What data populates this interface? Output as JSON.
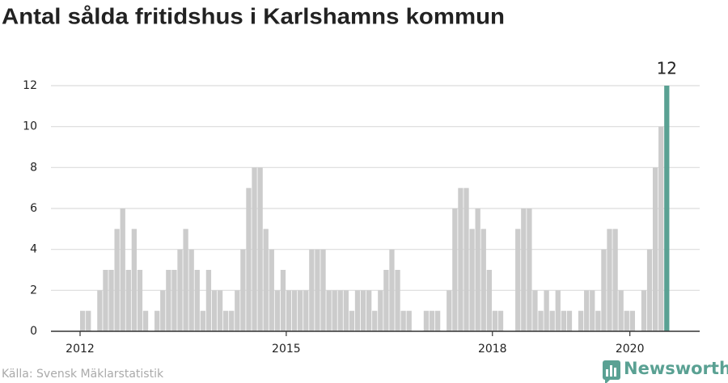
{
  "chart_data": {
    "type": "bar",
    "title": "Antal sålda fritidshus i Karlshamns kommun",
    "source": "Källa: Svensk Mäklarstatistik",
    "brand": "Newsworthy",
    "categories": [
      "2012",
      null,
      null,
      null,
      null,
      null,
      null,
      null,
      null,
      null,
      null,
      null,
      null,
      null,
      null,
      null,
      null,
      null,
      null,
      null,
      null,
      null,
      null,
      null,
      null,
      null,
      null,
      null,
      null,
      null,
      null,
      null,
      null,
      null,
      null,
      null,
      "2015",
      null,
      null,
      null,
      null,
      null,
      null,
      null,
      null,
      null,
      null,
      null,
      null,
      null,
      null,
      null,
      null,
      null,
      null,
      null,
      null,
      null,
      null,
      null,
      null,
      null,
      null,
      null,
      null,
      null,
      null,
      null,
      null,
      null,
      null,
      null,
      "2018",
      null,
      null,
      null,
      null,
      null,
      null,
      null,
      null,
      null,
      null,
      null,
      null,
      null,
      null,
      null,
      null,
      null,
      null,
      null,
      null,
      null,
      null,
      null,
      "2020",
      null,
      null,
      null,
      null,
      null,
      null
    ],
    "values": [
      1,
      1,
      0,
      2,
      3,
      3,
      5,
      6,
      3,
      5,
      3,
      1,
      0,
      1,
      2,
      3,
      3,
      4,
      5,
      4,
      3,
      1,
      3,
      2,
      2,
      1,
      1,
      2,
      4,
      7,
      8,
      8,
      5,
      4,
      2,
      3,
      2,
      2,
      2,
      2,
      4,
      4,
      4,
      2,
      2,
      2,
      2,
      1,
      2,
      2,
      2,
      1,
      2,
      3,
      4,
      3,
      1,
      1,
      0,
      0,
      1,
      1,
      1,
      0,
      2,
      6,
      7,
      7,
      5,
      6,
      5,
      3,
      1,
      1,
      0,
      0,
      5,
      6,
      6,
      2,
      1,
      2,
      1,
      2,
      1,
      1,
      0,
      1,
      2,
      2,
      1,
      4,
      5,
      5,
      2,
      1,
      1,
      0,
      2,
      4,
      8,
      10,
      12
    ],
    "color": "#cccccc",
    "highlight_color": "#5aa193",
    "highlight_label": "12",
    "ylim": [
      0,
      12.5
    ],
    "yticks": [
      0,
      2,
      4,
      6,
      8,
      10,
      12
    ],
    "grid": true
  }
}
